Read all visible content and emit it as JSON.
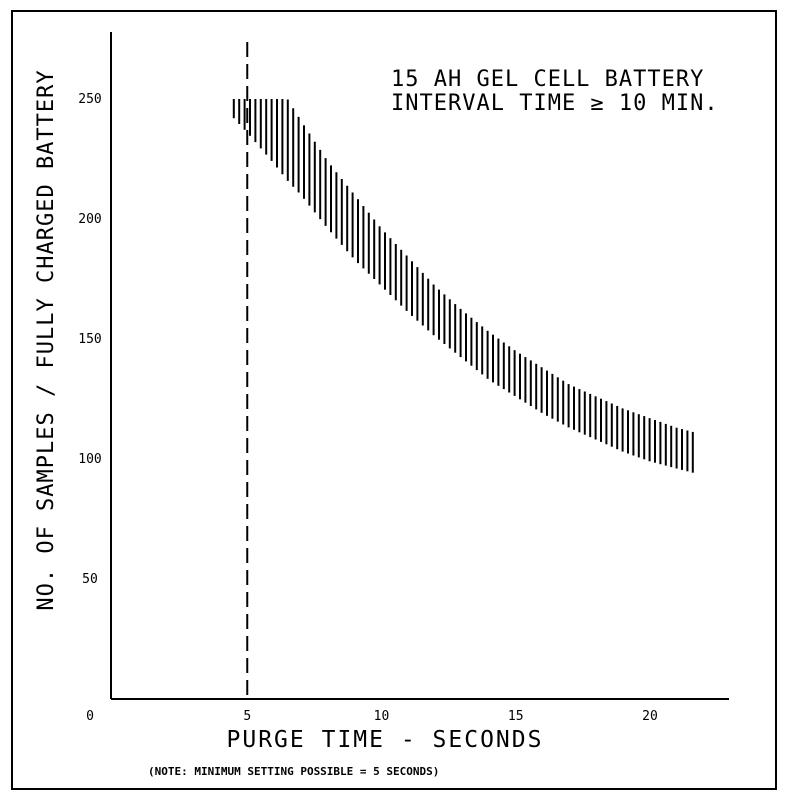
{
  "chart_data": {
    "type": "area",
    "title": "15 AH GEL CELL BATTERY",
    "subtitle": "INTERVAL TIME ≥ 10 MIN.",
    "xlabel": "PURGE TIME - SECONDS",
    "ylabel": "NO. OF SAMPLES / FULLY CHARGED BATTERY",
    "note": "(NOTE: MINIMUM SETTING POSSIBLE = 5 SECONDS)",
    "xlim": [
      0,
      23
    ],
    "ylim": [
      0,
      280
    ],
    "x_ticks": [
      "0",
      "5",
      "10",
      "15",
      "20"
    ],
    "x_tick_values": [
      0,
      5,
      10,
      15,
      20
    ],
    "y_ticks": [
      "50",
      "100",
      "150",
      "200",
      "250"
    ],
    "y_tick_values": [
      50,
      100,
      150,
      200,
      250
    ],
    "grid": false,
    "reference_line": {
      "x": 5,
      "style": "dashed"
    },
    "band": {
      "x": [
        4.5,
        5,
        6,
        6.5,
        7,
        8,
        9,
        10,
        11,
        12,
        13,
        14,
        15,
        16,
        17,
        18,
        19,
        20,
        21,
        21.7
      ],
      "upper": [
        250,
        250,
        250,
        250,
        241,
        224,
        210,
        196,
        184,
        172,
        162,
        153,
        145,
        138,
        131,
        126,
        121,
        117,
        113,
        111
      ],
      "lower": [
        242,
        236,
        223,
        216,
        210,
        196,
        183,
        172,
        161,
        151,
        142,
        133,
        126,
        119,
        113,
        108,
        103,
        99,
        96,
        94
      ]
    },
    "colors": {
      "ink": "#000000",
      "background": "#ffffff"
    }
  }
}
